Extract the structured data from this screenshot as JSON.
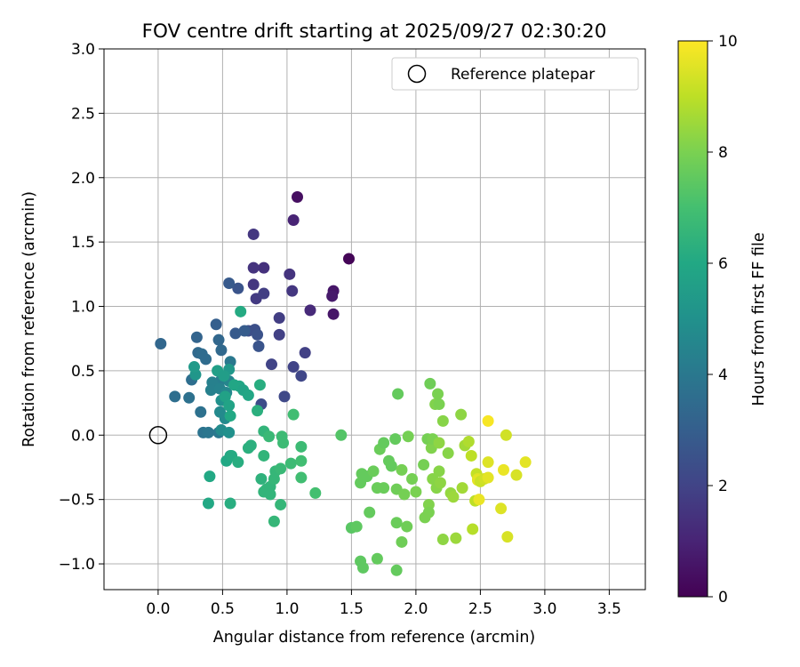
{
  "chart_data": {
    "type": "scatter",
    "title": "FOV centre drift starting at 2025/09/27 02:30:20",
    "xlabel": "Angular distance from reference (arcmin)",
    "ylabel": "Rotation from reference (arcmin)",
    "xlim": [
      -0.42,
      3.78
    ],
    "ylim": [
      -1.2,
      3.0
    ],
    "xticks": [
      0.0,
      0.5,
      1.0,
      1.5,
      2.0,
      2.5,
      3.0,
      3.5
    ],
    "xtick_labels": [
      "0.0",
      "0.5",
      "1.0",
      "1.5",
      "2.0",
      "2.5",
      "3.0",
      "3.5"
    ],
    "yticks": [
      -1.0,
      -0.5,
      0.0,
      0.5,
      1.0,
      1.5,
      2.0,
      2.5,
      3.0
    ],
    "ytick_labels": [
      "−1.0",
      "−0.5",
      "0.0",
      "0.5",
      "1.0",
      "1.5",
      "2.0",
      "2.5",
      "3.0"
    ],
    "grid": true,
    "legend": {
      "position": "top-right",
      "entries": [
        "Reference platepar"
      ]
    },
    "reference_point": {
      "x": 0.0,
      "y": 0.0,
      "label": "Reference platepar"
    },
    "colorbar": {
      "label": "Hours from first FF file",
      "range": [
        0,
        10
      ],
      "ticks": [
        0,
        2,
        4,
        6,
        8,
        10
      ],
      "tick_labels": [
        "0",
        "2",
        "4",
        "6",
        "8",
        "10"
      ],
      "colormap": "viridis"
    },
    "series": [
      {
        "name": "FOV centre drift",
        "points": [
          [
            1.48,
            1.37,
            0.1
          ],
          [
            1.08,
            1.85,
            0.4
          ],
          [
            1.36,
            1.12,
            0.6
          ],
          [
            1.35,
            1.08,
            0.7
          ],
          [
            1.36,
            0.94,
            0.6
          ],
          [
            1.05,
            1.67,
            1.0
          ],
          [
            1.18,
            0.97,
            1.2
          ],
          [
            0.82,
            1.3,
            1.4
          ],
          [
            0.74,
            1.3,
            1.5
          ],
          [
            0.74,
            1.56,
            1.6
          ],
          [
            1.02,
            1.25,
            1.5
          ],
          [
            0.74,
            1.17,
            1.6
          ],
          [
            1.04,
            1.12,
            1.6
          ],
          [
            0.76,
            1.06,
            1.7
          ],
          [
            0.82,
            1.1,
            1.8
          ],
          [
            0.94,
            0.91,
            1.8
          ],
          [
            0.94,
            0.78,
            1.9
          ],
          [
            1.14,
            0.64,
            1.9
          ],
          [
            0.88,
            0.55,
            2.0
          ],
          [
            1.05,
            0.53,
            2.0
          ],
          [
            1.11,
            0.46,
            2.1
          ],
          [
            0.98,
            0.3,
            2.2
          ],
          [
            0.8,
            0.24,
            2.3
          ],
          [
            0.75,
            0.82,
            2.4
          ],
          [
            0.7,
            0.81,
            2.4
          ],
          [
            0.77,
            0.78,
            2.5
          ],
          [
            0.78,
            0.69,
            2.6
          ],
          [
            0.62,
            1.14,
            2.6
          ],
          [
            0.55,
            1.18,
            2.8
          ],
          [
            0.6,
            0.79,
            2.8
          ],
          [
            0.67,
            0.81,
            2.9
          ],
          [
            0.45,
            0.86,
            3.0
          ],
          [
            0.02,
            0.71,
            3.3
          ],
          [
            0.3,
            0.76,
            3.2
          ],
          [
            0.47,
            0.74,
            3.3
          ],
          [
            0.49,
            0.66,
            3.4
          ],
          [
            0.31,
            0.64,
            3.4
          ],
          [
            0.34,
            0.63,
            3.5
          ],
          [
            0.37,
            0.59,
            3.5
          ],
          [
            0.26,
            0.43,
            3.6
          ],
          [
            0.13,
            0.3,
            3.6
          ],
          [
            0.24,
            0.29,
            3.7
          ],
          [
            0.33,
            0.18,
            3.7
          ],
          [
            0.35,
            0.02,
            3.8
          ],
          [
            0.39,
            0.02,
            3.9
          ],
          [
            0.47,
            0.02,
            4.0
          ],
          [
            0.56,
            0.57,
            4.0
          ],
          [
            0.49,
            0.43,
            4.2
          ],
          [
            0.42,
            0.41,
            4.3
          ],
          [
            0.41,
            0.35,
            4.3
          ],
          [
            0.48,
            0.36,
            4.4
          ],
          [
            0.55,
            0.42,
            4.5
          ],
          [
            0.53,
            0.33,
            4.6
          ],
          [
            0.48,
            0.18,
            4.7
          ],
          [
            0.52,
            0.13,
            4.7
          ],
          [
            0.49,
            0.04,
            4.8
          ],
          [
            0.55,
            0.02,
            5.0
          ],
          [
            0.49,
            0.27,
            5.0
          ],
          [
            0.29,
            0.47,
            5.2
          ],
          [
            0.28,
            0.53,
            5.4
          ],
          [
            0.55,
            0.51,
            5.3
          ],
          [
            0.46,
            0.5,
            5.6
          ],
          [
            0.51,
            0.46,
            5.5
          ],
          [
            0.52,
            0.3,
            5.7
          ],
          [
            0.55,
            0.23,
            5.8
          ],
          [
            0.59,
            0.39,
            5.9
          ],
          [
            0.63,
            0.38,
            5.9
          ],
          [
            0.66,
            0.35,
            5.8
          ],
          [
            0.7,
            0.31,
            5.9
          ],
          [
            0.79,
            0.39,
            6.2
          ],
          [
            0.64,
            0.96,
            6.1
          ],
          [
            0.77,
            0.19,
            6.3
          ],
          [
            0.56,
            0.15,
            6.0
          ],
          [
            0.56,
            -0.16,
            5.9
          ],
          [
            0.53,
            -0.2,
            6.0
          ],
          [
            0.57,
            -0.16,
            6.1
          ],
          [
            0.62,
            -0.21,
            6.2
          ],
          [
            0.4,
            -0.32,
            6.0
          ],
          [
            0.39,
            -0.53,
            6.0
          ],
          [
            0.56,
            -0.53,
            6.2
          ],
          [
            0.7,
            -0.1,
            6.3
          ],
          [
            0.72,
            -0.08,
            6.3
          ],
          [
            0.8,
            -0.34,
            6.4
          ],
          [
            0.82,
            -0.44,
            6.5
          ],
          [
            0.84,
            -0.42,
            6.5
          ],
          [
            0.87,
            -0.4,
            6.5
          ],
          [
            0.87,
            -0.46,
            6.5
          ],
          [
            0.9,
            -0.34,
            6.6
          ],
          [
            0.91,
            -0.28,
            6.6
          ],
          [
            0.95,
            -0.26,
            6.7
          ],
          [
            0.9,
            -0.67,
            6.6
          ],
          [
            0.95,
            -0.54,
            6.6
          ],
          [
            0.82,
            -0.16,
            6.5
          ],
          [
            0.82,
            0.03,
            6.5
          ],
          [
            0.86,
            -0.01,
            6.7
          ],
          [
            0.96,
            -0.01,
            6.8
          ],
          [
            0.97,
            -0.06,
            6.8
          ],
          [
            1.03,
            -0.22,
            6.8
          ],
          [
            1.11,
            -0.09,
            6.8
          ],
          [
            1.11,
            -0.2,
            6.9
          ],
          [
            1.05,
            0.16,
            6.9
          ],
          [
            1.11,
            -0.33,
            6.9
          ],
          [
            1.22,
            -0.45,
            7.0
          ],
          [
            1.42,
            0.0,
            7.3
          ],
          [
            1.5,
            -0.72,
            7.4
          ],
          [
            1.54,
            -0.71,
            7.5
          ],
          [
            1.57,
            -0.37,
            7.6
          ],
          [
            1.58,
            -0.3,
            7.6
          ],
          [
            1.57,
            -0.98,
            7.5
          ],
          [
            1.59,
            -1.03,
            7.5
          ],
          [
            1.62,
            -0.32,
            7.6
          ],
          [
            1.64,
            -0.6,
            7.6
          ],
          [
            1.67,
            -0.28,
            7.7
          ],
          [
            1.7,
            -0.41,
            7.7
          ],
          [
            1.7,
            -0.96,
            7.6
          ],
          [
            1.72,
            -0.11,
            7.7
          ],
          [
            1.75,
            -0.06,
            7.6
          ],
          [
            1.75,
            -0.41,
            7.7
          ],
          [
            1.79,
            -0.2,
            7.6
          ],
          [
            1.81,
            -0.24,
            7.6
          ],
          [
            1.84,
            -0.03,
            7.6
          ],
          [
            1.85,
            -0.42,
            7.8
          ],
          [
            1.85,
            -0.68,
            7.7
          ],
          [
            1.85,
            -1.05,
            7.6
          ],
          [
            1.86,
            0.32,
            7.6
          ],
          [
            1.89,
            -0.27,
            7.9
          ],
          [
            1.89,
            -0.83,
            7.8
          ],
          [
            1.91,
            -0.46,
            7.9
          ],
          [
            1.93,
            -0.71,
            7.8
          ],
          [
            1.94,
            -0.01,
            7.9
          ],
          [
            1.97,
            -0.34,
            7.9
          ],
          [
            2.0,
            -0.44,
            8.0
          ],
          [
            2.06,
            -0.23,
            7.9
          ],
          [
            2.07,
            -0.64,
            8.0
          ],
          [
            2.09,
            -0.03,
            7.9
          ],
          [
            2.1,
            -0.54,
            8.1
          ],
          [
            2.1,
            -0.6,
            8.0
          ],
          [
            2.11,
            0.4,
            7.8
          ],
          [
            2.12,
            -0.1,
            8.1
          ],
          [
            2.13,
            -0.34,
            8.2
          ],
          [
            2.13,
            -0.03,
            8.0
          ],
          [
            2.15,
            0.24,
            8.1
          ],
          [
            2.16,
            -0.41,
            8.2
          ],
          [
            2.17,
            0.32,
            8.0
          ],
          [
            2.18,
            0.24,
            8.0
          ],
          [
            2.18,
            -0.28,
            8.2
          ],
          [
            2.18,
            -0.06,
            8.3
          ],
          [
            2.19,
            -0.37,
            8.3
          ],
          [
            2.21,
            -0.81,
            8.3
          ],
          [
            2.21,
            0.11,
            8.2
          ],
          [
            2.25,
            -0.14,
            8.2
          ],
          [
            2.27,
            -0.45,
            8.4
          ],
          [
            2.29,
            -0.48,
            8.5
          ],
          [
            2.31,
            -0.8,
            8.5
          ],
          [
            2.35,
            0.16,
            8.3
          ],
          [
            2.36,
            -0.41,
            8.6
          ],
          [
            2.38,
            -0.08,
            8.6
          ],
          [
            2.41,
            -0.05,
            8.8
          ],
          [
            2.43,
            -0.16,
            9.0
          ],
          [
            2.44,
            -0.73,
            8.9
          ],
          [
            2.46,
            -0.51,
            9.0
          ],
          [
            2.47,
            -0.3,
            9.1
          ],
          [
            2.48,
            -0.34,
            9.5
          ],
          [
            2.48,
            -0.35,
            9.6
          ],
          [
            2.49,
            -0.5,
            9.7
          ],
          [
            2.5,
            -0.36,
            9.2
          ],
          [
            2.53,
            -0.34,
            9.3
          ],
          [
            2.56,
            -0.21,
            9.5
          ],
          [
            2.56,
            0.11,
            9.9
          ],
          [
            2.56,
            -0.33,
            9.6
          ],
          [
            2.66,
            -0.57,
            9.5
          ],
          [
            2.68,
            -0.27,
            9.7
          ],
          [
            2.7,
            0.0,
            9.3
          ],
          [
            2.71,
            -0.79,
            9.4
          ],
          [
            2.78,
            -0.31,
            9.4
          ],
          [
            2.85,
            -0.21,
            9.6
          ]
        ]
      }
    ]
  }
}
